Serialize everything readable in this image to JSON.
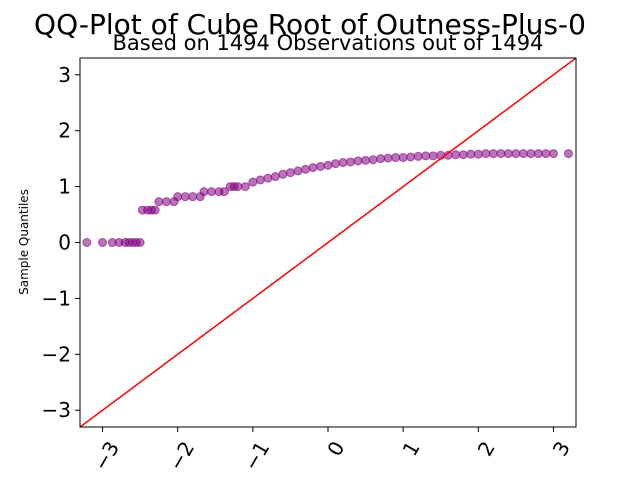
{
  "chart_data": {
    "type": "scatter",
    "title": "QQ-Plot of Cube Root of Outness-Plus-0",
    "subtitle": "Based on 1494 Observations out of 1494",
    "xlabel": "",
    "ylabel": "Sample Quantiles",
    "xlim": [
      -3.3,
      3.3
    ],
    "ylim": [
      -3.3,
      3.3
    ],
    "xticks": [
      -3,
      -2,
      -1,
      0,
      1,
      2,
      3
    ],
    "yticks": [
      -3,
      -2,
      -1,
      0,
      1,
      2,
      3
    ],
    "xtick_labels": [
      "−3",
      "−2",
      "−1",
      "0",
      "1",
      "2",
      "3"
    ],
    "ytick_labels": [
      "−3",
      "−2",
      "−1",
      "0",
      "1",
      "2",
      "3"
    ],
    "grid": false,
    "point_color": "#800080",
    "line_color": "#ff0000",
    "reference_line": {
      "x": [
        -3.3,
        3.3
      ],
      "y": [
        -3.3,
        3.3
      ]
    },
    "series": [
      {
        "x": [
          -3.21,
          -3.0,
          -2.87,
          -2.78,
          -2.7,
          -2.65,
          -2.6,
          -2.55,
          -2.5,
          -2.47,
          -2.4,
          -2.35,
          -2.3,
          -2.25,
          -2.15,
          -2.05,
          -2.0,
          -1.9,
          -1.8,
          -1.7,
          -1.65,
          -1.55,
          -1.45,
          -1.38,
          -1.3,
          -1.25,
          -1.2,
          -1.1,
          -1.0,
          -0.9,
          -0.8,
          -0.7,
          -0.6,
          -0.5,
          -0.4,
          -0.3,
          -0.2,
          -0.1,
          0.0,
          0.1,
          0.2,
          0.3,
          0.4,
          0.5,
          0.6,
          0.7,
          0.8,
          0.9,
          1.0,
          1.1,
          1.2,
          1.3,
          1.4,
          1.5,
          1.6,
          1.7,
          1.8,
          1.9,
          2.0,
          2.1,
          2.2,
          2.3,
          2.4,
          2.5,
          2.6,
          2.7,
          2.8,
          2.9,
          3.0,
          3.2
        ],
        "y": [
          0.0,
          0.0,
          0.0,
          0.0,
          0.0,
          0.0,
          0.0,
          0.0,
          0.0,
          0.58,
          0.58,
          0.58,
          0.58,
          0.73,
          0.73,
          0.73,
          0.82,
          0.82,
          0.82,
          0.82,
          0.91,
          0.91,
          0.91,
          0.91,
          1.0,
          1.0,
          1.0,
          1.0,
          1.08,
          1.12,
          1.15,
          1.18,
          1.22,
          1.25,
          1.28,
          1.31,
          1.34,
          1.36,
          1.38,
          1.41,
          1.43,
          1.44,
          1.46,
          1.47,
          1.48,
          1.5,
          1.51,
          1.52,
          1.52,
          1.53,
          1.54,
          1.55,
          1.55,
          1.56,
          1.56,
          1.57,
          1.57,
          1.58,
          1.58,
          1.59,
          1.59,
          1.59,
          1.59,
          1.59,
          1.59,
          1.59,
          1.59,
          1.59,
          1.59,
          1.59
        ]
      }
    ]
  }
}
